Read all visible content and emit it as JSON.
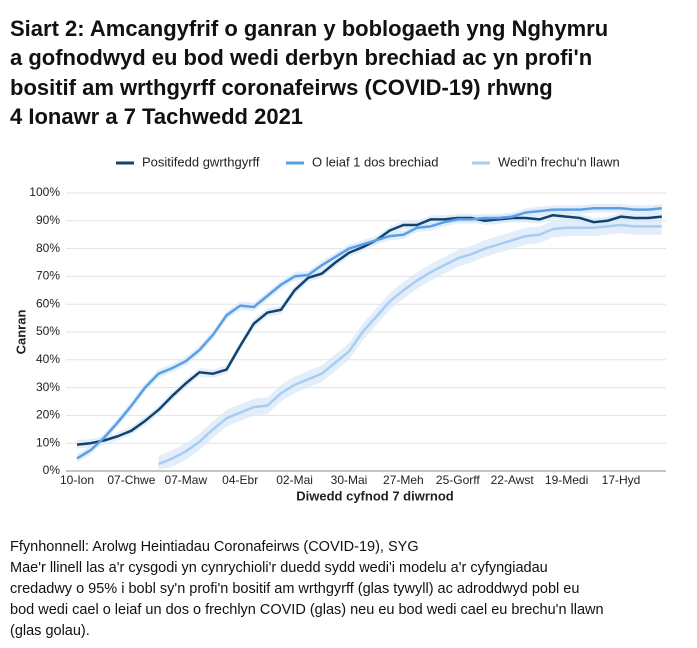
{
  "chart_data": {
    "type": "line",
    "title": [
      "Siart 2: Amcangyfrif o ganran y boblogaeth yng Nghymru",
      "a gofnodwyd eu bod wedi derbyn brechiad ac yn profi'n",
      "bositif am wrthgyrff coronafeirws (COVID-19) rhwng",
      "4 Ionawr a 7 Tachwedd 2021"
    ],
    "y_label": "Canran",
    "x_label": "Diwedd cyfnod 7 diwrnod",
    "source": "Ffynhonnell: Arolwg Heintiadau Coronafeirws (COVID-19), SYG",
    "note": [
      "Mae'r llinell las a'r cysgodi yn cynrychioli'r duedd sydd wedi'i modelu a'r cyfyngiadau",
      "credadwy o 95% i bobl sy'n profi'n bositif am wrthgyrff (glas tywyll) ac adroddwyd pobl eu",
      "bod wedi cael o leiaf un dos o frechlyn COVID (glas) neu eu bod wedi cael eu brechu'n llawn",
      "(glas golau)."
    ],
    "band_color": "#d9e8f8",
    "categories": [
      "10-Ion",
      null,
      null,
      null,
      "07-Chwe",
      null,
      null,
      null,
      "07-Maw",
      null,
      null,
      null,
      "04-Ebr",
      null,
      null,
      null,
      "02-Mai",
      null,
      null,
      null,
      "30-Mai",
      null,
      null,
      null,
      "27-Meh",
      null,
      null,
      null,
      "25-Gorff",
      null,
      null,
      null,
      "22-Awst",
      null,
      null,
      null,
      "19-Medi",
      null,
      null,
      null,
      "17-Hyd",
      null,
      null,
      null
    ],
    "ylim": [
      0,
      100
    ],
    "yticks": [
      {
        "value": 0,
        "label": "0%"
      },
      {
        "value": 10,
        "label": "10%"
      },
      {
        "value": 20,
        "label": "20%"
      },
      {
        "value": 30,
        "label": "30%"
      },
      {
        "value": 40,
        "label": "40%"
      },
      {
        "value": 50,
        "label": "50%"
      },
      {
        "value": 60,
        "label": "60%"
      },
      {
        "value": 70,
        "label": "70%"
      },
      {
        "value": 80,
        "label": "80%"
      },
      {
        "value": 90,
        "label": "90%"
      },
      {
        "value": 100,
        "label": "100%"
      }
    ],
    "grid": true,
    "legend": "top",
    "series": [
      {
        "name": "Positifedd gwrthgyrff",
        "color": "#12436d",
        "values": [
          9.5,
          10,
          11,
          12.5,
          14.5,
          18,
          22,
          27,
          31.5,
          35.5,
          35,
          36.5,
          45,
          53,
          57,
          58,
          65,
          69.5,
          71,
          75,
          78.5,
          80.5,
          83,
          86.5,
          88.5,
          88.5,
          90.5,
          90.5,
          91,
          91,
          90,
          90.5,
          91,
          91,
          90.5,
          92,
          91.5,
          91,
          89.5,
          90,
          91.5,
          91,
          91,
          91.5
        ],
        "lower": [
          8,
          8.5,
          9.5,
          11,
          13,
          16.5,
          20.5,
          25.5,
          30,
          34,
          33.5,
          35,
          43.5,
          51.5,
          55.5,
          56.5,
          63.5,
          68,
          69.5,
          73.5,
          77,
          79,
          81.5,
          85,
          87,
          87,
          89,
          89,
          89.5,
          89.5,
          88.5,
          89,
          89.5,
          89.5,
          89,
          90.5,
          90,
          89.5,
          88,
          88.5,
          90,
          89.5,
          89.5,
          90
        ],
        "upper": [
          11,
          11.5,
          12.5,
          14,
          16,
          19.5,
          23.5,
          28.5,
          33,
          37,
          36.5,
          38,
          46.5,
          54.5,
          58.5,
          59.5,
          66.5,
          71,
          72.5,
          76.5,
          80,
          82,
          84.5,
          88,
          90,
          90,
          92,
          92,
          92.5,
          92.5,
          91.5,
          92,
          92.5,
          92.5,
          92,
          93.5,
          93,
          92.5,
          91,
          91.5,
          93,
          92.5,
          92.5,
          93
        ]
      },
      {
        "name": "O leiaf 1 dos brechiad",
        "color": "#5a9fe6",
        "values": [
          4.5,
          7.5,
          12,
          17.5,
          23.5,
          30,
          35,
          37,
          39.5,
          43.5,
          49,
          56,
          59.5,
          59,
          63,
          67,
          70,
          70.5,
          74,
          77,
          80,
          81.5,
          83,
          84.5,
          85,
          87.5,
          88,
          89.5,
          90.5,
          90.5,
          91,
          91,
          91.5,
          93,
          93.5,
          94,
          94,
          94,
          94.5,
          94.5,
          94.5,
          94,
          94,
          94.5
        ],
        "lower": [
          3,
          6,
          10.5,
          16,
          22,
          28.5,
          33.5,
          35.5,
          38,
          42,
          47.5,
          54.5,
          58,
          57.5,
          61.5,
          65.5,
          68.5,
          69,
          72.5,
          75.5,
          78.5,
          80,
          81.5,
          83,
          83.5,
          86,
          86.5,
          88,
          89,
          89,
          89.5,
          89.5,
          90,
          91.5,
          92,
          92.5,
          92.5,
          92.5,
          93,
          93,
          93,
          92.5,
          92.5,
          93
        ],
        "upper": [
          6,
          9,
          13.5,
          19,
          25,
          31.5,
          36.5,
          38.5,
          41,
          45,
          50.5,
          57.5,
          61,
          60.5,
          64.5,
          68.5,
          71.5,
          72,
          75.5,
          78.5,
          81.5,
          83,
          84.5,
          86,
          86.5,
          89,
          89.5,
          91,
          92,
          92,
          92.5,
          92.5,
          93,
          94.5,
          95,
          95.5,
          95.5,
          95.5,
          96,
          96,
          96,
          95.5,
          95.5,
          96
        ]
      },
      {
        "name": "Wedi'n frechu'n llawn",
        "color": "#a8cdf2",
        "values": [
          null,
          null,
          null,
          null,
          null,
          null,
          2.5,
          4.5,
          7,
          10.5,
          15,
          19,
          21,
          23,
          23.5,
          28,
          31,
          33,
          35,
          39,
          43,
          50,
          55.5,
          61,
          65,
          68.5,
          71.5,
          74,
          76.5,
          78,
          80,
          81.5,
          83,
          84.5,
          85,
          87,
          87.5,
          87.5,
          87.5,
          88,
          88.5,
          88,
          88,
          88
        ],
        "lower": [
          null,
          null,
          null,
          null,
          null,
          null,
          0.5,
          1.5,
          4,
          7.5,
          12,
          16,
          18,
          20,
          20.5,
          25,
          28,
          30,
          32,
          36,
          40,
          47,
          52.5,
          58,
          62,
          65.5,
          68.5,
          71,
          73.5,
          75,
          77,
          78.5,
          80,
          81.5,
          82,
          84,
          84.5,
          84.5,
          84.5,
          85,
          85.5,
          85,
          85,
          85
        ],
        "upper": [
          null,
          null,
          null,
          null,
          null,
          null,
          5.5,
          7.5,
          10,
          13.5,
          18,
          22,
          24,
          26,
          26.5,
          31,
          34,
          36,
          38,
          42,
          46,
          53,
          58.5,
          64,
          68,
          71.5,
          74.5,
          77,
          79.5,
          81,
          83,
          84.5,
          86,
          87.5,
          88,
          90,
          90.5,
          90.5,
          90.5,
          91,
          91.5,
          91,
          91,
          91
        ]
      }
    ]
  }
}
